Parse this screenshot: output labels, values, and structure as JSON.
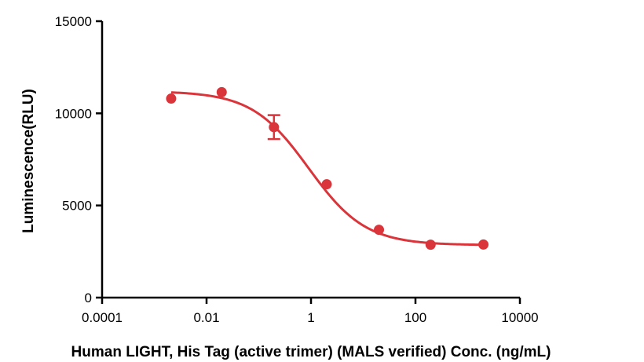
{
  "chart_data": {
    "type": "scatter",
    "xlabel": "Human LIGHT, His Tag (active trimer) (MALS verified) Conc. (ng/mL)",
    "ylabel": "Luminescence(RLU)",
    "x_scale": "log",
    "xlim": [
      0.0001,
      10000
    ],
    "ylim": [
      0,
      15000
    ],
    "x_ticks": [
      "0.0001",
      "0.01",
      "1",
      "100",
      "10000"
    ],
    "y_ticks": [
      "0",
      "5000",
      "10000",
      "15000"
    ],
    "x_tick_values": [
      0.0001,
      0.01,
      1,
      100,
      10000
    ],
    "y_tick_values": [
      0,
      5000,
      10000,
      15000
    ],
    "grid": false,
    "color": "#d9353b",
    "series": [
      {
        "points": [
          {
            "x": 0.0021,
            "y": 10800
          },
          {
            "x": 0.0195,
            "y": 11150
          },
          {
            "x": 0.195,
            "y": 9250,
            "err": 650
          },
          {
            "x": 2.0,
            "y": 6150
          },
          {
            "x": 20.0,
            "y": 3680
          },
          {
            "x": 195,
            "y": 2870
          },
          {
            "x": 2000,
            "y": 2880
          }
        ],
        "fit": {
          "bottom": 2850,
          "top": 11200,
          "ic50": 0.9,
          "hill": 0.8
        }
      }
    ]
  }
}
